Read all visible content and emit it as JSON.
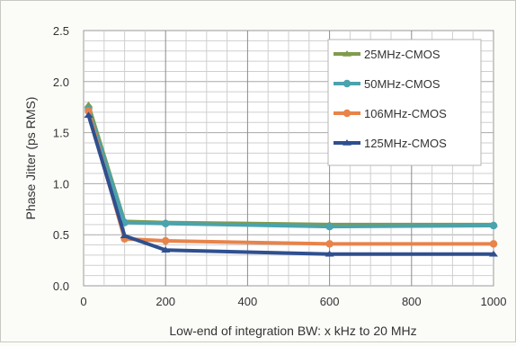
{
  "chart_data": {
    "type": "line",
    "title": "",
    "xlabel": "Low-end of integration BW: x kHz to 20 MHz",
    "ylabel": "Phase Jitter (ps RMS)",
    "xlim": [
      0,
      1000
    ],
    "ylim": [
      0,
      2.5
    ],
    "xticks": [
      "0",
      "200",
      "400",
      "600",
      "800",
      "1000"
    ],
    "yticks": [
      "0.0",
      "0.5",
      "1.0",
      "1.5",
      "2.0",
      "2.5"
    ],
    "grid": true,
    "legend_position": "top-right",
    "x": [
      12,
      100,
      200,
      600,
      1000
    ],
    "series": [
      {
        "name": "25MHz-CMOS",
        "color": "#7f9b4f",
        "marker": "triangle",
        "values": [
          1.77,
          0.63,
          0.62,
          0.6,
          0.6
        ]
      },
      {
        "name": "50MHz-CMOS",
        "color": "#4aa3ad",
        "marker": "circle",
        "values": [
          1.73,
          0.62,
          0.61,
          0.58,
          0.59
        ]
      },
      {
        "name": "106MHz-CMOS",
        "color": "#e8834a",
        "marker": "circle",
        "values": [
          1.71,
          0.46,
          0.44,
          0.41,
          0.41
        ]
      },
      {
        "name": "125MHz-CMOS",
        "color": "#2f4f8f",
        "marker": "triangle",
        "values": [
          1.67,
          0.49,
          0.35,
          0.31,
          0.31
        ]
      }
    ]
  }
}
